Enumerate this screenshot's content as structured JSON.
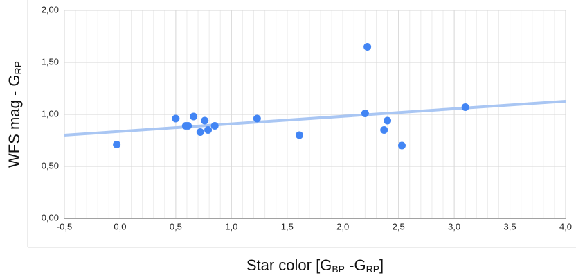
{
  "chart_data": {
    "type": "scatter",
    "xlabel": [
      "Star color [G",
      "BP",
      " -G",
      "RP",
      "]"
    ],
    "ylabel": [
      "WFS mag - G",
      "RP"
    ],
    "x": [
      -0.03,
      0.5,
      0.59,
      0.61,
      0.66,
      0.72,
      0.76,
      0.79,
      0.85,
      1.23,
      1.61,
      2.2,
      2.22,
      2.37,
      2.4,
      2.53,
      3.1
    ],
    "series": [
      {
        "color": "#4285f4",
        "values": [
          0.71,
          0.96,
          0.89,
          0.89,
          0.98,
          0.83,
          0.94,
          0.85,
          0.89,
          0.96,
          0.8,
          1.01,
          1.65,
          0.85,
          0.94,
          0.7,
          1.07
        ]
      }
    ],
    "trendline": {
      "color": "#a9c6f3",
      "x": [
        -0.5,
        4.0
      ],
      "y": [
        0.8,
        1.127
      ]
    },
    "xlim": [
      -0.5,
      4.0
    ],
    "xticks": [
      {
        "value": -0.5,
        "label": "-0,5"
      },
      {
        "value": 0,
        "label": "0,0"
      },
      {
        "value": 0.5,
        "label": "0,5"
      },
      {
        "value": 1,
        "label": "1,0"
      },
      {
        "value": 1.5,
        "label": "1,5"
      },
      {
        "value": 2,
        "label": "2,0"
      },
      {
        "value": 2.5,
        "label": "2,5"
      },
      {
        "value": 3,
        "label": "3,0"
      },
      {
        "value": 3.5,
        "label": "3,5"
      },
      {
        "value": 4,
        "label": "4,0"
      }
    ],
    "ylim": [
      0,
      2
    ],
    "yticks": [
      {
        "value": 0,
        "label": "0,00"
      },
      {
        "value": 0.5,
        "label": "0,50"
      },
      {
        "value": 1,
        "label": "1,00"
      },
      {
        "value": 1.5,
        "label": "1,50"
      },
      {
        "value": 2,
        "label": "2,00"
      }
    ],
    "grid": true
  }
}
